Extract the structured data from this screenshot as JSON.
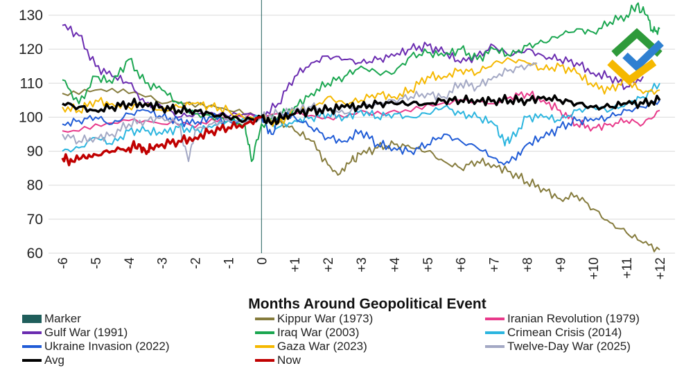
{
  "chart_data": {
    "type": "line",
    "xlabel": "Months Around Geopolitical Event",
    "ylabel": "",
    "ylim": [
      60,
      130
    ],
    "xlim": [
      -6,
      12
    ],
    "yticks": [
      "60",
      "70",
      "80",
      "90",
      "100",
      "110",
      "120",
      "130"
    ],
    "xticks": [
      "-6",
      "-5",
      "-4",
      "-3",
      "-2",
      "-1",
      "0",
      "+1",
      "+2",
      "+3",
      "+4",
      "+5",
      "+6",
      "+7",
      "+8",
      "+9",
      "+10",
      "+11",
      "+12"
    ],
    "xtick_values": [
      -6,
      -5,
      -4,
      -3,
      -2,
      -1,
      0,
      1,
      2,
      3,
      4,
      5,
      6,
      7,
      8,
      9,
      10,
      11,
      12
    ],
    "marker": {
      "name": "Marker",
      "x": 0,
      "color": "#1f5e5b"
    },
    "series": [
      {
        "name": "Kippur War (1973)",
        "color": "#857b3c",
        "width": 2,
        "x": [
          -6,
          -5,
          -4,
          -3,
          -2,
          -1,
          0,
          0.5,
          1,
          1.5,
          2,
          2.3,
          2.7,
          3,
          3.5,
          4,
          4.5,
          5,
          5.5,
          6,
          6.5,
          7,
          7.5,
          8,
          8.5,
          9,
          9.5,
          10,
          10.5,
          11,
          11.5,
          12
        ],
        "y": [
          107,
          108,
          107,
          104,
          103,
          102,
          100,
          99,
          96,
          93,
          86,
          83,
          87,
          89,
          91,
          92,
          91,
          90,
          87,
          85,
          87,
          86,
          84,
          81,
          79,
          76,
          77,
          73,
          69,
          66,
          63,
          61
        ]
      },
      {
        "name": "Iranian Revolution (1979)",
        "color": "#e8398a",
        "width": 2,
        "x": [
          -6,
          -5,
          -4,
          -3,
          -2,
          -1,
          0,
          1,
          2,
          3,
          4,
          5,
          6,
          7,
          7.5,
          8,
          8.5,
          9,
          9.5,
          10,
          10.5,
          11,
          11.5,
          12
        ],
        "y": [
          96,
          98,
          99,
          98,
          97,
          99,
          100,
          101,
          100,
          102,
          102,
          104,
          105,
          104,
          106,
          107,
          105,
          102,
          98,
          97,
          98,
          99,
          98,
          102
        ]
      },
      {
        "name": "Gulf War (1991)",
        "color": "#6a2bb0",
        "width": 2,
        "x": [
          -6,
          -5.5,
          -5,
          -4.5,
          -4,
          -3.5,
          -3,
          -2.5,
          -2,
          -1,
          0,
          0.5,
          1,
          1.5,
          2,
          2.5,
          3,
          3.5,
          4,
          4.5,
          5,
          5.5,
          6,
          6.5,
          7,
          7.5,
          8,
          8.5,
          9,
          9.5,
          10,
          10.5,
          11,
          11.5
        ],
        "y": [
          127,
          124,
          115,
          112,
          110,
          104,
          103,
          100,
          101,
          100,
          100,
          104,
          112,
          116,
          118,
          117,
          116,
          117,
          118,
          120,
          121,
          119,
          116,
          118,
          121,
          118,
          120,
          118,
          117,
          116,
          113,
          112,
          109,
          112
        ]
      },
      {
        "name": "Iraq War (2003)",
        "color": "#1aa650",
        "width": 2,
        "x": [
          -6,
          -5.5,
          -5,
          -4.5,
          -4,
          -3.5,
          -3,
          -2.5,
          -2,
          -1.5,
          -1,
          -0.5,
          -0.3,
          0,
          0.5,
          1,
          1.5,
          2,
          2.5,
          3,
          3.5,
          4,
          4.5,
          5,
          5.5,
          6,
          6.5,
          7,
          7.5,
          8,
          8.5,
          9,
          9.5,
          10,
          10.5,
          11,
          11.3,
          11.6,
          11.8,
          12
        ],
        "y": [
          111,
          104,
          112,
          110,
          117,
          110,
          108,
          104,
          101,
          100,
          99,
          98,
          87,
          98,
          100,
          103,
          107,
          110,
          112,
          115,
          113,
          113,
          118,
          119,
          118,
          120,
          117,
          120,
          118,
          121,
          122,
          124,
          126,
          125,
          128,
          130,
          133,
          130,
          125,
          126
        ]
      },
      {
        "name": "Crimean Crisis (2014)",
        "color": "#2bb5df",
        "width": 2,
        "x": [
          -6,
          -5.5,
          -5,
          -4.5,
          -4,
          -3.5,
          -3,
          -2.5,
          -2,
          -1.5,
          -1,
          0,
          0.5,
          1,
          1.5,
          2,
          2.5,
          3,
          3.5,
          4,
          4.5,
          5,
          5.5,
          6,
          6.5,
          7,
          7.3,
          7.5,
          8,
          8.5,
          9,
          9.5,
          10,
          10.5,
          11,
          11.5,
          12
        ],
        "y": [
          90,
          91,
          94,
          92,
          96,
          96,
          95,
          97,
          96,
          97,
          99,
          100,
          97,
          99,
          100,
          101,
          100,
          102,
          100,
          101,
          100,
          101,
          103,
          101,
          100,
          98,
          93,
          93,
          100,
          100,
          99,
          102,
          103,
          102,
          104,
          106,
          110
        ]
      },
      {
        "name": "Ukraine Invasion (2022)",
        "color": "#1f5bd6",
        "width": 2,
        "x": [
          -6,
          -5.5,
          -5,
          -4.5,
          -4,
          -3.5,
          -3,
          -2.5,
          -2,
          -1.5,
          -1,
          0,
          0.3,
          0.6,
          1,
          1.5,
          2,
          2.5,
          3,
          3.5,
          4,
          4.5,
          5,
          5.5,
          6,
          6.5,
          7,
          7.3,
          7.6,
          8,
          8.5,
          9,
          9.5,
          10,
          10.5,
          11,
          11.5,
          12
        ],
        "y": [
          98,
          99,
          100,
          98,
          101,
          102,
          100,
          99,
          98,
          100,
          99,
          100,
          95,
          101,
          100,
          97,
          94,
          93,
          96,
          92,
          91,
          90,
          92,
          95,
          93,
          91,
          88,
          86,
          88,
          92,
          94,
          97,
          99,
          99,
          100,
          102,
          103,
          105
        ]
      },
      {
        "name": "Gaza War (2023)",
        "color": "#f5b800",
        "width": 2,
        "x": [
          -6,
          -5.5,
          -5,
          -4.5,
          -4,
          -3.5,
          -3,
          -2.5,
          -2,
          -1.5,
          -1,
          0,
          0.5,
          1,
          1.5,
          2,
          2.5,
          3,
          3.5,
          4,
          4.5,
          5,
          5.5,
          6,
          6.5,
          7,
          7.5,
          8,
          8.5,
          9,
          9.5,
          10,
          10.5,
          11,
          11.5,
          12
        ],
        "y": [
          103,
          102,
          105,
          104,
          103,
          104,
          102,
          103,
          104,
          103,
          102,
          100,
          98,
          102,
          102,
          106,
          104,
          105,
          107,
          106,
          108,
          112,
          112,
          114,
          113,
          116,
          117,
          116,
          114,
          115,
          113,
          109,
          108,
          111,
          107,
          108
        ]
      },
      {
        "name": "Twelve-Day War (2025)",
        "color": "#a3a8c4",
        "width": 2,
        "x": [
          -6,
          -5.5,
          -5,
          -4.5,
          -4,
          -3.5,
          -3,
          -2.5,
          -2.2,
          -2,
          -1.5,
          -1,
          0,
          0.5,
          1,
          1.5,
          2,
          2.5,
          3,
          3.5,
          4,
          4.5,
          5,
          5.5,
          6,
          6.5,
          7,
          7.5,
          8,
          8.3
        ],
        "y": [
          95,
          93,
          94,
          95,
          98,
          99,
          100,
          98,
          87,
          96,
          98,
          99,
          100,
          101,
          102,
          103,
          102,
          101,
          103,
          104,
          105,
          106,
          107,
          106,
          110,
          109,
          112,
          114,
          115,
          116
        ]
      },
      {
        "name": "Avg",
        "color": "#000000",
        "width": 3.5,
        "x": [
          -6,
          -5.5,
          -5,
          -4.5,
          -4,
          -3.5,
          -3,
          -2.5,
          -2,
          -1.5,
          -1,
          -0.5,
          0,
          0.3,
          0.6,
          1,
          1.5,
          2,
          2.5,
          3,
          3.5,
          4,
          4.5,
          5,
          5.5,
          6,
          6.5,
          7,
          7.5,
          8,
          8.5,
          9,
          9.5,
          10,
          10.5,
          11,
          11.5,
          12
        ],
        "y": [
          104,
          103,
          102,
          103,
          104,
          104,
          103,
          102,
          102,
          101,
          100,
          99,
          100,
          98,
          100,
          101,
          102,
          102,
          103,
          103,
          104,
          104,
          104,
          104,
          105,
          105,
          105,
          105,
          105,
          105,
          106,
          105,
          104,
          103,
          103,
          104,
          104,
          105
        ]
      },
      {
        "name": "Now",
        "color": "#c00000",
        "width": 3.5,
        "x": [
          -6,
          -5.7,
          -5.3,
          -5,
          -4.5,
          -4,
          -3.7,
          -3.5,
          -3.3,
          -3,
          -2.5,
          -2,
          -1.5,
          -1,
          -0.5,
          0
        ],
        "y": [
          88,
          87,
          88,
          89,
          90,
          91,
          92,
          90,
          91,
          92,
          93,
          94,
          96,
          97,
          98,
          100
        ]
      }
    ]
  },
  "legend": {
    "items": [
      {
        "name": "Marker",
        "color": "#1f5e5b",
        "style": "box"
      },
      {
        "name": "Kippur War (1973)",
        "color": "#857b3c",
        "style": "line"
      },
      {
        "name": "Iranian Revolution (1979)",
        "color": "#e8398a",
        "style": "line"
      },
      {
        "name": "Gulf War (1991)",
        "color": "#6a2bb0",
        "style": "line"
      },
      {
        "name": "Iraq War (2003)",
        "color": "#1aa650",
        "style": "line"
      },
      {
        "name": "Crimean Crisis (2014)",
        "color": "#2bb5df",
        "style": "line"
      },
      {
        "name": "Ukraine Invasion (2022)",
        "color": "#1f5bd6",
        "style": "line"
      },
      {
        "name": "Gaza War (2023)",
        "color": "#f5b800",
        "style": "line"
      },
      {
        "name": "Twelve-Day War (2025)",
        "color": "#a3a8c4",
        "style": "line"
      },
      {
        "name": "Avg",
        "color": "#000000",
        "style": "line"
      },
      {
        "name": "Now",
        "color": "#c00000",
        "style": "line"
      }
    ]
  },
  "logo": {
    "icon": "logo-chevrons-icon",
    "colors": [
      "#2e9a3a",
      "#f5b800",
      "#2f80d1"
    ]
  }
}
